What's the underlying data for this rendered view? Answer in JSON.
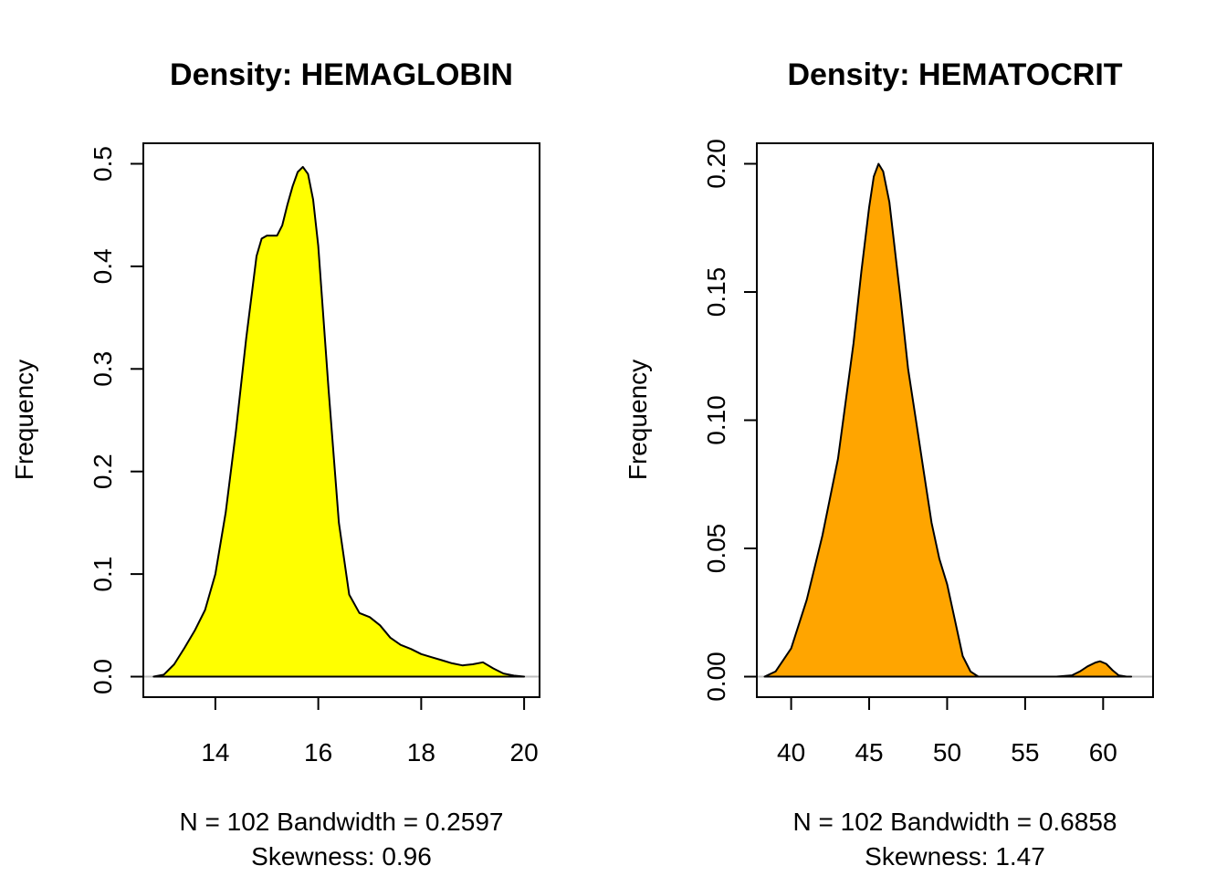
{
  "chart_data": [
    {
      "type": "area",
      "title": "Density: HEMAGLOBIN",
      "ylabel": "Frequency",
      "xlabel_lines": [
        "N = 102   Bandwidth = 0.2597",
        "Skewness: 0.96"
      ],
      "xlim": [
        12.6,
        20.3
      ],
      "ylim": [
        -0.02,
        0.52
      ],
      "xticks": [
        14,
        16,
        18,
        20
      ],
      "yticks": [
        0.0,
        0.1,
        0.2,
        0.3,
        0.4,
        0.5
      ],
      "ytick_labels": [
        "0.0",
        "0.1",
        "0.2",
        "0.3",
        "0.4",
        "0.5"
      ],
      "fill_color": "#FFFF00",
      "baseline": 0,
      "x": [
        12.8,
        13.0,
        13.2,
        13.4,
        13.6,
        13.8,
        14.0,
        14.2,
        14.4,
        14.6,
        14.8,
        14.9,
        15.0,
        15.1,
        15.2,
        15.3,
        15.4,
        15.5,
        15.6,
        15.7,
        15.8,
        15.9,
        16.0,
        16.2,
        16.4,
        16.6,
        16.8,
        17.0,
        17.2,
        17.4,
        17.6,
        17.8,
        18.0,
        18.2,
        18.4,
        18.6,
        18.8,
        19.0,
        19.2,
        19.4,
        19.6,
        19.8,
        20.0
      ],
      "y": [
        0.0,
        0.002,
        0.012,
        0.028,
        0.045,
        0.065,
        0.1,
        0.16,
        0.24,
        0.33,
        0.41,
        0.427,
        0.43,
        0.43,
        0.43,
        0.44,
        0.46,
        0.478,
        0.492,
        0.497,
        0.49,
        0.465,
        0.42,
        0.28,
        0.15,
        0.08,
        0.062,
        0.058,
        0.05,
        0.038,
        0.031,
        0.027,
        0.022,
        0.019,
        0.016,
        0.013,
        0.011,
        0.012,
        0.014,
        0.008,
        0.003,
        0.001,
        0.0
      ]
    },
    {
      "type": "area",
      "title": "Density: HEMATOCRIT",
      "ylabel": "Frequency",
      "xlabel_lines": [
        "N = 102   Bandwidth = 0.6858",
        "Skewness: 1.47"
      ],
      "xlim": [
        37.8,
        63.2
      ],
      "ylim": [
        -0.008,
        0.208
      ],
      "xticks": [
        40,
        45,
        50,
        55,
        60
      ],
      "yticks": [
        0.0,
        0.05,
        0.1,
        0.15,
        0.2
      ],
      "ytick_labels": [
        "0.00",
        "0.05",
        "0.10",
        "0.15",
        "0.20"
      ],
      "fill_color": "#FFA500",
      "baseline": 0,
      "x": [
        38.3,
        39.0,
        40.0,
        41.0,
        42.0,
        43.0,
        44.0,
        44.5,
        45.0,
        45.3,
        45.6,
        45.9,
        46.3,
        47.0,
        47.5,
        48.0,
        48.5,
        49.0,
        49.5,
        50.0,
        50.5,
        51.0,
        51.5,
        52.0,
        53.0,
        55.0,
        57.0,
        58.0,
        58.5,
        59.0,
        59.5,
        59.8,
        60.2,
        60.6,
        61.0,
        61.5,
        61.8
      ],
      "y": [
        0.0,
        0.002,
        0.011,
        0.03,
        0.055,
        0.085,
        0.13,
        0.158,
        0.183,
        0.195,
        0.2,
        0.197,
        0.185,
        0.148,
        0.12,
        0.1,
        0.08,
        0.06,
        0.046,
        0.036,
        0.022,
        0.008,
        0.002,
        0.0,
        0.0,
        0.0,
        0.0,
        0.0005,
        0.002,
        0.004,
        0.0055,
        0.006,
        0.005,
        0.0025,
        0.0005,
        0.0,
        0.0
      ]
    }
  ]
}
